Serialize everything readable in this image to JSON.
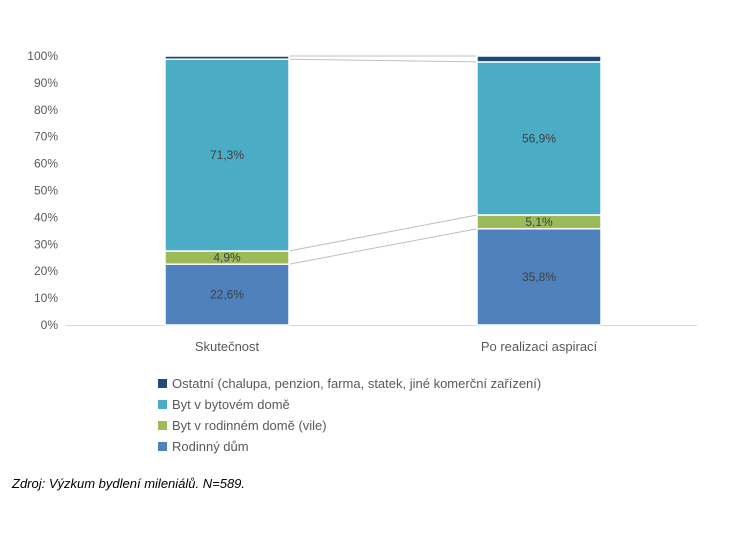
{
  "chart_data": {
    "type": "bar",
    "stacked": true,
    "percent": true,
    "categories": [
      "Skutečnost",
      "Po realizaci aspirací"
    ],
    "series": [
      {
        "name": "Rodinný dům",
        "color": "#4F81BD",
        "values": [
          22.6,
          35.8
        ],
        "labels": [
          "22,6%",
          "35,8%"
        ]
      },
      {
        "name": "Byt v rodinném domě (vile)",
        "color": "#9BBB59",
        "values": [
          4.9,
          5.1
        ],
        "labels": [
          "4,9%",
          "5,1%"
        ]
      },
      {
        "name": "Byt v bytovém domě",
        "color": "#4BACC6",
        "values": [
          71.3,
          56.9
        ],
        "labels": [
          "71,3%",
          "56,9%"
        ]
      },
      {
        "name": "Ostatní (chalupa, penzion, farma, statek, jiné komerční zařízení)",
        "color": "#1F497D",
        "values": [
          1.2,
          2.2
        ],
        "labels": [
          "",
          ""
        ]
      }
    ],
    "y_ticks": [
      "0%",
      "10%",
      "20%",
      "30%",
      "40%",
      "50%",
      "60%",
      "70%",
      "80%",
      "90%",
      "100%"
    ],
    "ylim": [
      0,
      100
    ],
    "grid": false,
    "legend_position": "bottom",
    "series_lines": true
  },
  "source_note": "Zdroj: Výzkum bydlení mileniálů. N=589."
}
